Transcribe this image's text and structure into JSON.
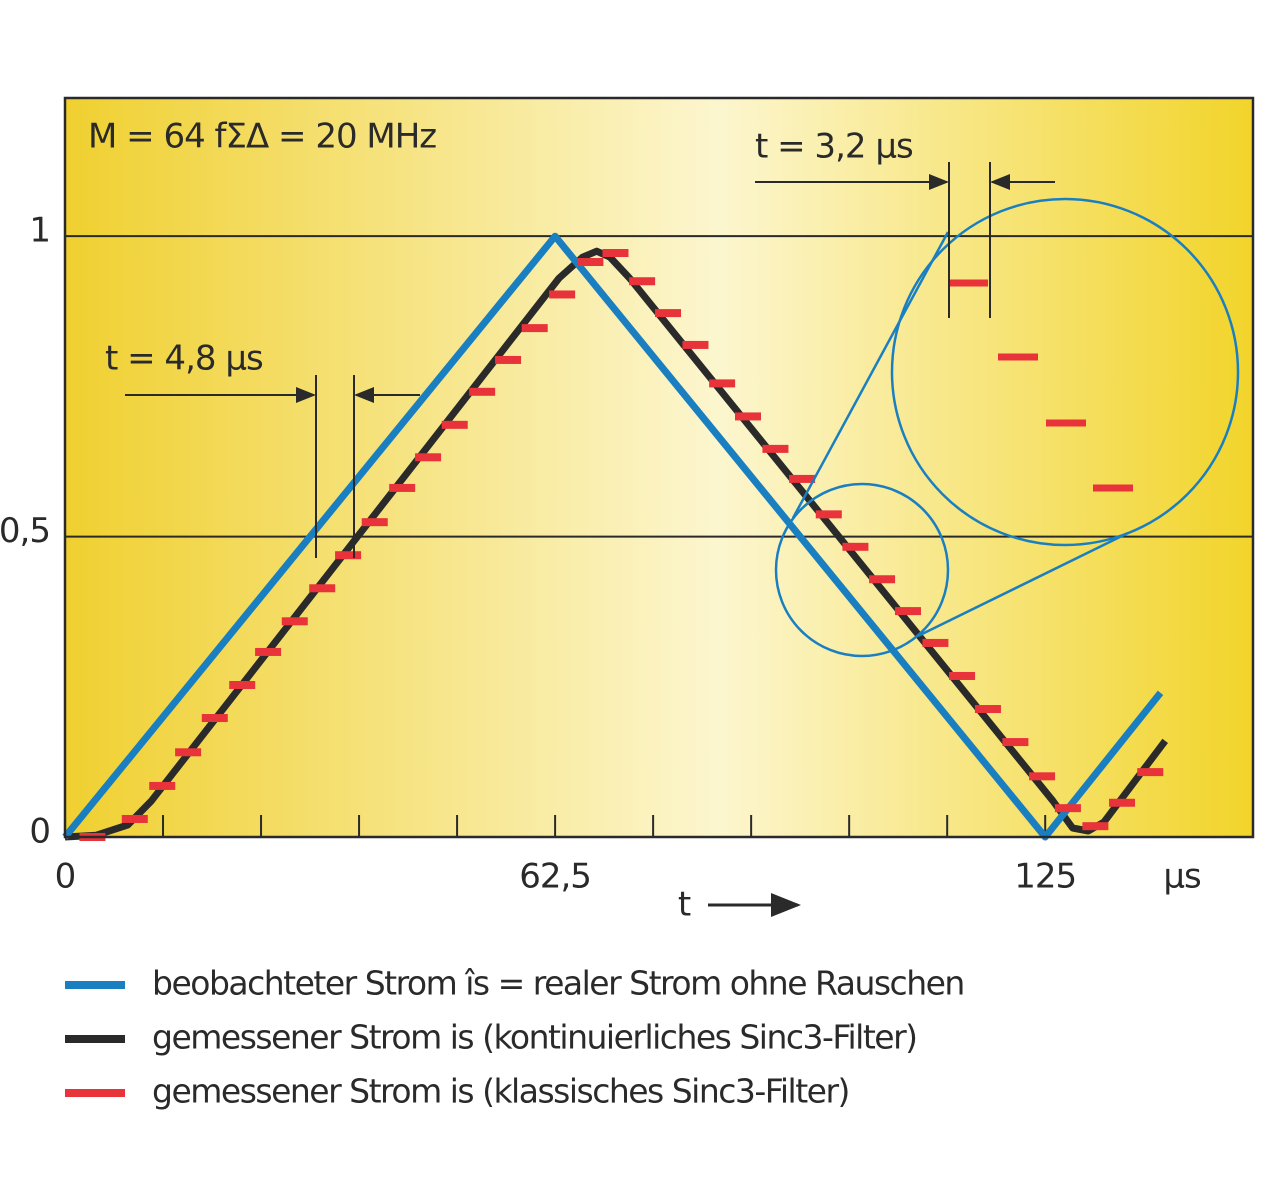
{
  "chart_data": {
    "type": "line",
    "annotations": [
      "M = 64  fΣΔ = 20 MHz",
      "t = 3,2 µs",
      "t = 4,8 µs"
    ],
    "x_label": "t",
    "x_unit": "µs",
    "xlim": [
      0,
      151.5
    ],
    "ylim": [
      0,
      1.23
    ],
    "xticks": [
      0,
      {
        "value": 62.5,
        "label": "62,5"
      },
      125
    ],
    "x_minor_ticks": [
      12.5,
      25,
      37.5,
      50,
      62.5,
      75,
      87.5,
      100,
      112.5,
      125
    ],
    "yticks": [
      0,
      {
        "value": 0.5,
        "label": "0,5"
      },
      1
    ],
    "grid": true,
    "series": [
      {
        "name": "beobachteter Strom  îs = realer Strom ohne Rauschen",
        "color": "#1a7fc1",
        "marker": "line",
        "x": [
          0,
          62.5,
          125,
          139.7
        ],
        "values": [
          0,
          1,
          0,
          0.24
        ]
      },
      {
        "name": "gemessener Strom is (kontinuierliches Sinc3-Filter)",
        "color": "#2a2a2a",
        "marker": "line",
        "x": [
          0,
          4,
          8,
          11,
          63,
          66,
          67.8,
          69.5,
          72,
          126,
          128.5,
          130.5,
          132.5,
          140.3
        ],
        "values": [
          0,
          0.003,
          0.02,
          0.06,
          0.93,
          0.965,
          0.975,
          0.965,
          0.93,
          0.06,
          0.015,
          0.01,
          0.025,
          0.16
        ]
      },
      {
        "name": "gemessener Strom is (klassisches Sinc3-Filter)",
        "color": "#e8333a",
        "marker": "dash",
        "x": [
          3.5,
          8.9,
          12.4,
          15.7,
          19.1,
          22.6,
          25.9,
          29.3,
          32.8,
          36.1,
          39.5,
          43.0,
          46.3,
          49.7,
          53.2,
          56.5,
          59.9,
          63.4,
          67.0,
          70.2,
          73.6,
          76.9,
          80.4,
          83.8,
          87.1,
          90.6,
          94.0,
          97.4,
          100.8,
          104.2,
          107.5,
          111.0,
          114.4,
          117.7,
          121.2,
          124.6,
          127.9,
          131.4,
          134.8,
          138.4
        ],
        "values": [
          0,
          0.03,
          0.085,
          0.141,
          0.198,
          0.253,
          0.308,
          0.359,
          0.414,
          0.469,
          0.524,
          0.581,
          0.632,
          0.686,
          0.741,
          0.794,
          0.847,
          0.903,
          0.957,
          0.972,
          0.925,
          0.872,
          0.819,
          0.755,
          0.7,
          0.646,
          0.596,
          0.537,
          0.483,
          0.429,
          0.376,
          0.323,
          0.268,
          0.213,
          0.158,
          0.101,
          0.048,
          0.018,
          0.057,
          0.108
        ]
      }
    ]
  }
}
